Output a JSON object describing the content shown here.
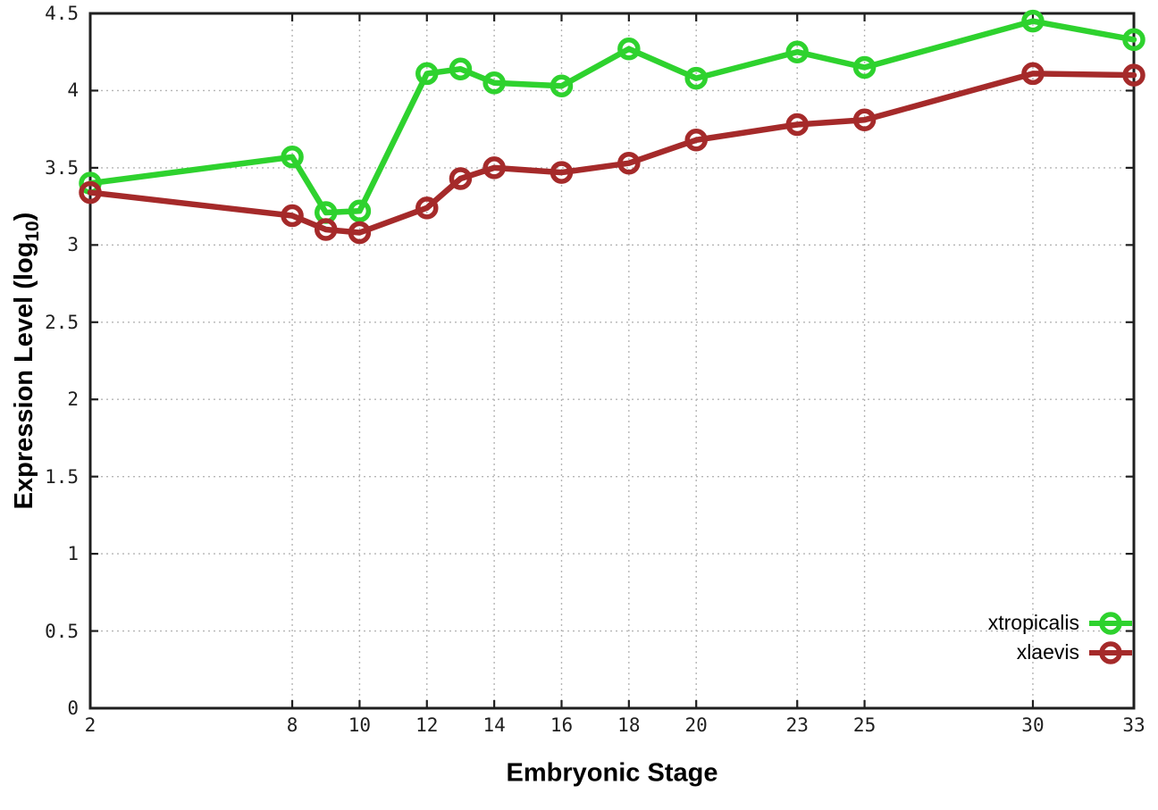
{
  "figure": {
    "xlabel": "Embryonic Stage",
    "ylabel_main": "Expression Level (log",
    "ylabel_sub": "10",
    "ylabel_close": ")"
  },
  "chart_data": {
    "type": "line",
    "title": "",
    "xlabel": "Embryonic Stage",
    "ylabel": "Expression Level (log10)",
    "xlim": [
      2,
      33
    ],
    "ylim": [
      0,
      4.5
    ],
    "grid": true,
    "legend_position": "bottom-right",
    "x": [
      2,
      8,
      9,
      10,
      12,
      13,
      14,
      16,
      18,
      20,
      23,
      25,
      30,
      33
    ],
    "xticks": [
      2,
      8,
      10,
      12,
      14,
      16,
      18,
      20,
      23,
      25,
      30,
      33
    ],
    "xtick_labels": [
      "2",
      "8",
      "10",
      "12",
      "14",
      "16",
      "18",
      "20",
      "23",
      "25",
      "30",
      "33"
    ],
    "yticks": [
      0,
      0.5,
      1,
      1.5,
      2,
      2.5,
      3,
      3.5,
      4,
      4.5
    ],
    "ytick_labels": [
      "0",
      "0.5",
      "1",
      "1.5",
      "2",
      "2.5",
      "3",
      "3.5",
      "4",
      "4.5"
    ],
    "series": [
      {
        "name": "xtropicalis",
        "color": "#2ed22e",
        "marker": "open-circle",
        "values": [
          3.4,
          3.57,
          3.21,
          3.22,
          4.11,
          4.14,
          4.05,
          4.03,
          4.27,
          4.08,
          4.25,
          4.15,
          4.45,
          4.33
        ]
      },
      {
        "name": "xlaevis",
        "color": "#a52a2a",
        "marker": "open-circle",
        "values": [
          3.34,
          3.19,
          3.1,
          3.08,
          3.24,
          3.43,
          3.5,
          3.47,
          3.53,
          3.68,
          3.78,
          3.81,
          4.11,
          4.1
        ]
      }
    ],
    "colors": {
      "axis": "#1f1f1f",
      "grid": "#b5b5b5",
      "background": "#ffffff"
    }
  }
}
